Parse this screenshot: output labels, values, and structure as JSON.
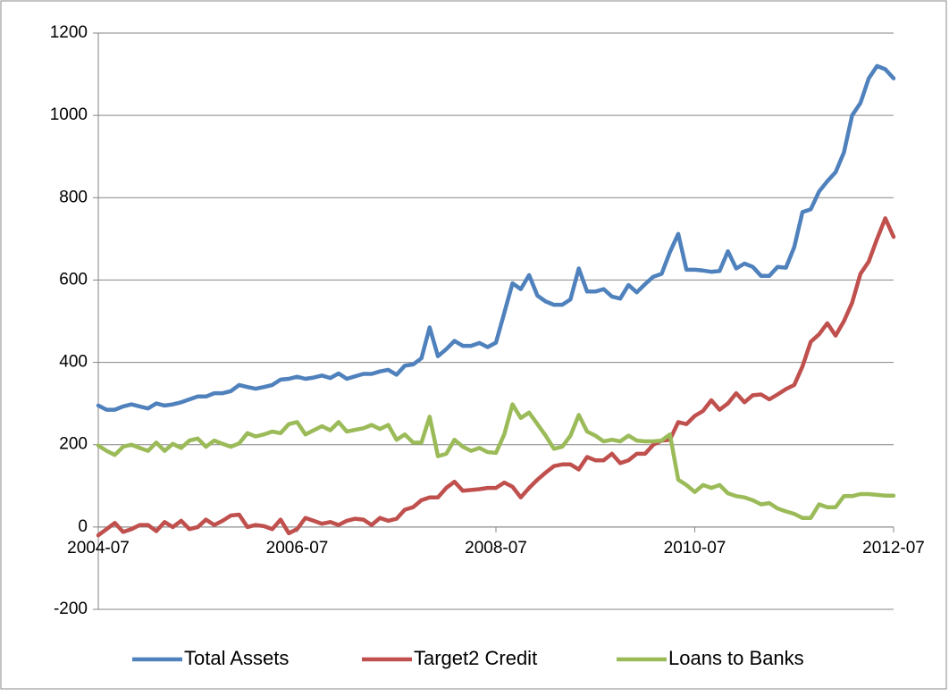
{
  "chart_data": {
    "type": "line",
    "categories": [
      "2004-07",
      null,
      null,
      null,
      null,
      null,
      null,
      null,
      null,
      null,
      null,
      null,
      null,
      null,
      null,
      null,
      null,
      null,
      null,
      null,
      null,
      null,
      null,
      null,
      "2006-07",
      null,
      null,
      null,
      null,
      null,
      null,
      null,
      null,
      null,
      null,
      null,
      null,
      null,
      null,
      null,
      null,
      null,
      null,
      null,
      null,
      null,
      null,
      null,
      "2008-07",
      null,
      null,
      null,
      null,
      null,
      null,
      null,
      null,
      null,
      null,
      null,
      null,
      null,
      null,
      null,
      null,
      null,
      null,
      null,
      null,
      null,
      null,
      null,
      "2010-07",
      null,
      null,
      null,
      null,
      null,
      null,
      null,
      null,
      null,
      null,
      null,
      null,
      null,
      null,
      null,
      null,
      null,
      null,
      null,
      null,
      null,
      null,
      null,
      "2012-07"
    ],
    "series": [
      {
        "name": "Total Assets",
        "color": "#4f81bd",
        "values": [
          295,
          285,
          285,
          293,
          298,
          293,
          288,
          300,
          295,
          298,
          303,
          310,
          317,
          317,
          325,
          325,
          330,
          345,
          340,
          336,
          340,
          345,
          358,
          360,
          365,
          360,
          363,
          368,
          362,
          373,
          360,
          366,
          372,
          372,
          378,
          382,
          370,
          392,
          395,
          410,
          485,
          415,
          432,
          452,
          440,
          440,
          447,
          437,
          448,
          520,
          592,
          578,
          612,
          562,
          548,
          540,
          540,
          553,
          628,
          572,
          572,
          578,
          560,
          555,
          588,
          570,
          590,
          608,
          615,
          668,
          712,
          625,
          625,
          623,
          620,
          622,
          670,
          628,
          640,
          632,
          610,
          610,
          632,
          630,
          680,
          765,
          772,
          815,
          840,
          862,
          910,
          1000,
          1030,
          1090,
          1120,
          1112,
          1090
        ]
      },
      {
        "name": "Target2 Credit",
        "color": "#c0504d",
        "values": [
          -20,
          -5,
          10,
          -12,
          -5,
          5,
          5,
          -10,
          12,
          0,
          15,
          -5,
          0,
          18,
          5,
          15,
          28,
          30,
          0,
          5,
          2,
          -5,
          18,
          -15,
          -5,
          22,
          15,
          8,
          12,
          5,
          15,
          20,
          18,
          5,
          22,
          15,
          20,
          42,
          48,
          65,
          72,
          72,
          95,
          110,
          88,
          90,
          92,
          95,
          95,
          108,
          98,
          72,
          95,
          115,
          132,
          148,
          152,
          152,
          140,
          170,
          162,
          162,
          178,
          155,
          162,
          178,
          178,
          200,
          210,
          212,
          255,
          250,
          270,
          282,
          308,
          285,
          300,
          325,
          303,
          320,
          322,
          310,
          322,
          335,
          345,
          390,
          450,
          468,
          495,
          465,
          500,
          545,
          615,
          645,
          700,
          750,
          705
        ]
      },
      {
        "name": "Loans to Banks",
        "color": "#9bbb59",
        "values": [
          198,
          185,
          175,
          195,
          200,
          192,
          185,
          205,
          185,
          202,
          192,
          210,
          215,
          195,
          210,
          202,
          195,
          203,
          228,
          220,
          225,
          232,
          228,
          250,
          255,
          225,
          235,
          245,
          235,
          255,
          232,
          236,
          240,
          248,
          238,
          248,
          212,
          225,
          205,
          205,
          268,
          172,
          178,
          212,
          195,
          185,
          192,
          182,
          180,
          225,
          298,
          265,
          278,
          250,
          222,
          190,
          195,
          222,
          272,
          232,
          222,
          208,
          212,
          208,
          222,
          210,
          208,
          208,
          210,
          225,
          115,
          102,
          85,
          102,
          95,
          102,
          82,
          75,
          72,
          65,
          55,
          58,
          45,
          38,
          32,
          22,
          22,
          55,
          48,
          48,
          75,
          75,
          80,
          80,
          78,
          76,
          76
        ]
      }
    ],
    "ylim": [
      -200,
      1200
    ],
    "yticks": [
      -200,
      0,
      200,
      400,
      600,
      800,
      1000,
      1200
    ],
    "grid": true,
    "legend": "bottom"
  }
}
